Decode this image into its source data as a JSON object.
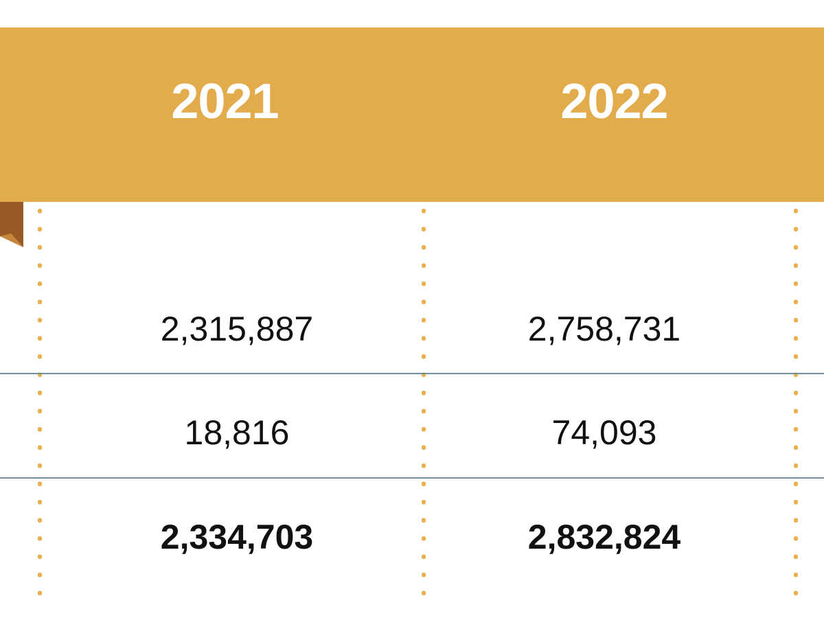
{
  "table": {
    "columns": [
      "2021",
      "2022"
    ],
    "rows": [
      {
        "values": [
          "2,315,887",
          "2,758,731"
        ]
      },
      {
        "values": [
          "18,816",
          "74,093"
        ]
      },
      {
        "values": [
          "2,334,703",
          "2,832,824"
        ],
        "emphasis": "total"
      }
    ]
  },
  "colors": {
    "header_band": "#e2ab4b",
    "header_text": "#ffffff",
    "dot_leader": "#e8b04e",
    "row_rule": "#6b8e9d",
    "ribbon_dark": "#9a5a25",
    "ribbon_light": "#c6873a",
    "cell_text": "#111111"
  }
}
